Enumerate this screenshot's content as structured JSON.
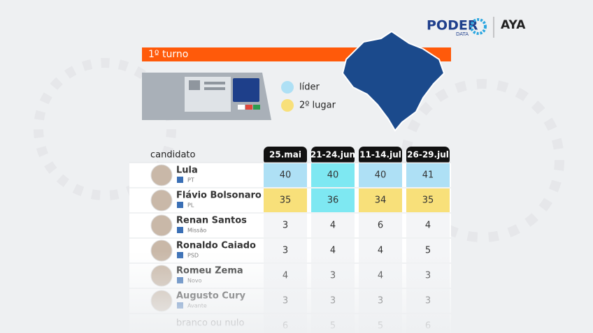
{
  "header": {
    "brand": "PODER",
    "brand_sub": "DATA",
    "partner": "AYA"
  },
  "section_title": "1º turno",
  "legend": [
    {
      "label": "líder",
      "color": "#aee0f5"
    },
    {
      "label": "2º lugar",
      "color": "#f8e07a"
    }
  ],
  "table": {
    "columns": [
      "candidato",
      "25.mai",
      "21-24.jun",
      "11-14.jul",
      "26-29.jul"
    ],
    "rows": [
      {
        "name": "Lula",
        "party": "PT",
        "values": [
          40,
          40,
          40,
          41
        ],
        "cell_colors": [
          "#aee0f5",
          "#7ee8f2",
          "#aee0f5",
          "#aee0f5"
        ]
      },
      {
        "name": "Flávio Bolsonaro",
        "party": "PL",
        "values": [
          35,
          36,
          34,
          35
        ],
        "cell_colors": [
          "#f8e07a",
          "#7ee8f2",
          "#f8e07a",
          "#f8e07a"
        ]
      },
      {
        "name": "Renan Santos",
        "party": "Missão",
        "values": [
          3,
          4,
          6,
          4
        ]
      },
      {
        "name": "Ronaldo Caiado",
        "party": "PSD",
        "values": [
          3,
          4,
          4,
          5
        ]
      },
      {
        "name": "Romeu Zema",
        "party": "Novo",
        "values": [
          4,
          3,
          4,
          3
        ]
      },
      {
        "name": "Augusto Cury",
        "party": "Avante",
        "values": [
          3,
          3,
          3,
          3
        ]
      },
      {
        "name": "branco ou nulo",
        "values": [
          6,
          5,
          5,
          6
        ]
      }
    ]
  }
}
